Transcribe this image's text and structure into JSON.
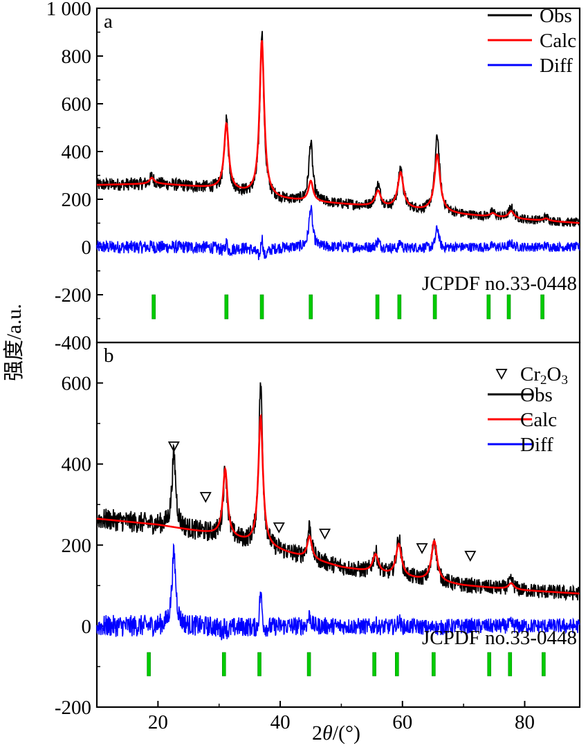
{
  "figure": {
    "ylabel": "强度/a.u.",
    "xlabel_prefix": "2",
    "xlabel_var": "θ",
    "xlabel_suffix": "/(°)"
  },
  "colors": {
    "obs": "#000000",
    "calc": "#ff0000",
    "diff": "#0000ff",
    "ref": "#00cc00"
  },
  "chart_data": [
    {
      "type": "line",
      "panel_label": "a",
      "xlim": [
        10,
        89
      ],
      "ylim": [
        -400,
        1000
      ],
      "yticks": [
        -400,
        -200,
        0,
        200,
        400,
        600,
        800,
        1000
      ],
      "ytick_labels": [
        "-400",
        "-200",
        "0",
        "200",
        "400",
        "600",
        "800",
        "1 000"
      ],
      "legend_position": "top-right",
      "legend": [
        "Obs",
        "Calc",
        "Diff"
      ],
      "reference_label": "JCPDF no.33-0448",
      "reference_peaks": [
        19.3,
        31.2,
        37.0,
        45.0,
        55.9,
        59.5,
        65.3,
        74.1,
        77.4,
        82.9
      ],
      "background": [
        [
          10,
          260
        ],
        [
          20,
          265
        ],
        [
          30,
          245
        ],
        [
          40,
          200
        ],
        [
          50,
          180
        ],
        [
          60,
          160
        ],
        [
          70,
          135
        ],
        [
          80,
          115
        ],
        [
          89,
          100
        ]
      ],
      "peaks": [
        {
          "pos": 19.0,
          "calc": 25,
          "obs": 30
        },
        {
          "pos": 31.2,
          "calc": 275,
          "obs": 295
        },
        {
          "pos": 37.0,
          "calc": 650,
          "obs": 690
        },
        {
          "pos": 45.0,
          "calc": 85,
          "obs": 250
        },
        {
          "pos": 56.0,
          "calc": 65,
          "obs": 90
        },
        {
          "pos": 59.7,
          "calc": 150,
          "obs": 170
        },
        {
          "pos": 65.7,
          "calc": 240,
          "obs": 320
        },
        {
          "pos": 74.8,
          "calc": 15,
          "obs": 20
        },
        {
          "pos": 77.8,
          "calc": 30,
          "obs": 45
        },
        {
          "pos": 83.5,
          "calc": 10,
          "obs": 15
        }
      ],
      "diff_offset": 0
    },
    {
      "type": "line",
      "panel_label": "b",
      "xlim": [
        10,
        89
      ],
      "ylim": [
        -200,
        700
      ],
      "yticks": [
        -200,
        0,
        200,
        400,
        600
      ],
      "ytick_labels": [
        "-200",
        "0",
        "200",
        "400",
        "600"
      ],
      "xticks": [
        20,
        40,
        60,
        80
      ],
      "xtick_labels": [
        "20",
        "40",
        "60",
        "80"
      ],
      "legend_position": "top-right",
      "legend": [
        "Obs",
        "Calc",
        "Diff"
      ],
      "marker_legend": "Cr2O3",
      "marker_legend_main": "Cr",
      "marker_legend_sub1": "2",
      "marker_legend_mid": "O",
      "marker_legend_sub2": "3",
      "cr2o3_peaks": [
        22.6,
        27.8,
        39.8,
        47.3,
        63.2,
        71.1
      ],
      "reference_label": "JCPDF no.33-0448",
      "reference_peaks": [
        18.5,
        30.8,
        36.6,
        44.7,
        55.4,
        59.1,
        65.1,
        74.2,
        77.6,
        83.1
      ],
      "background": [
        [
          10,
          265
        ],
        [
          20,
          250
        ],
        [
          30,
          225
        ],
        [
          40,
          185
        ],
        [
          50,
          145
        ],
        [
          60,
          120
        ],
        [
          70,
          100
        ],
        [
          80,
          88
        ],
        [
          89,
          80
        ]
      ],
      "peaks": [
        {
          "pos": 22.6,
          "calc": 0,
          "obs": 180
        },
        {
          "pos": 31.0,
          "calc": 165,
          "obs": 170
        },
        {
          "pos": 36.8,
          "calc": 320,
          "obs": 400
        },
        {
          "pos": 44.8,
          "calc": 55,
          "obs": 80
        },
        {
          "pos": 55.6,
          "calc": 45,
          "obs": 50
        },
        {
          "pos": 59.4,
          "calc": 80,
          "obs": 95
        },
        {
          "pos": 65.2,
          "calc": 100,
          "obs": 105
        },
        {
          "pos": 77.8,
          "calc": 15,
          "obs": 20
        }
      ],
      "diff_offset": 0
    }
  ]
}
